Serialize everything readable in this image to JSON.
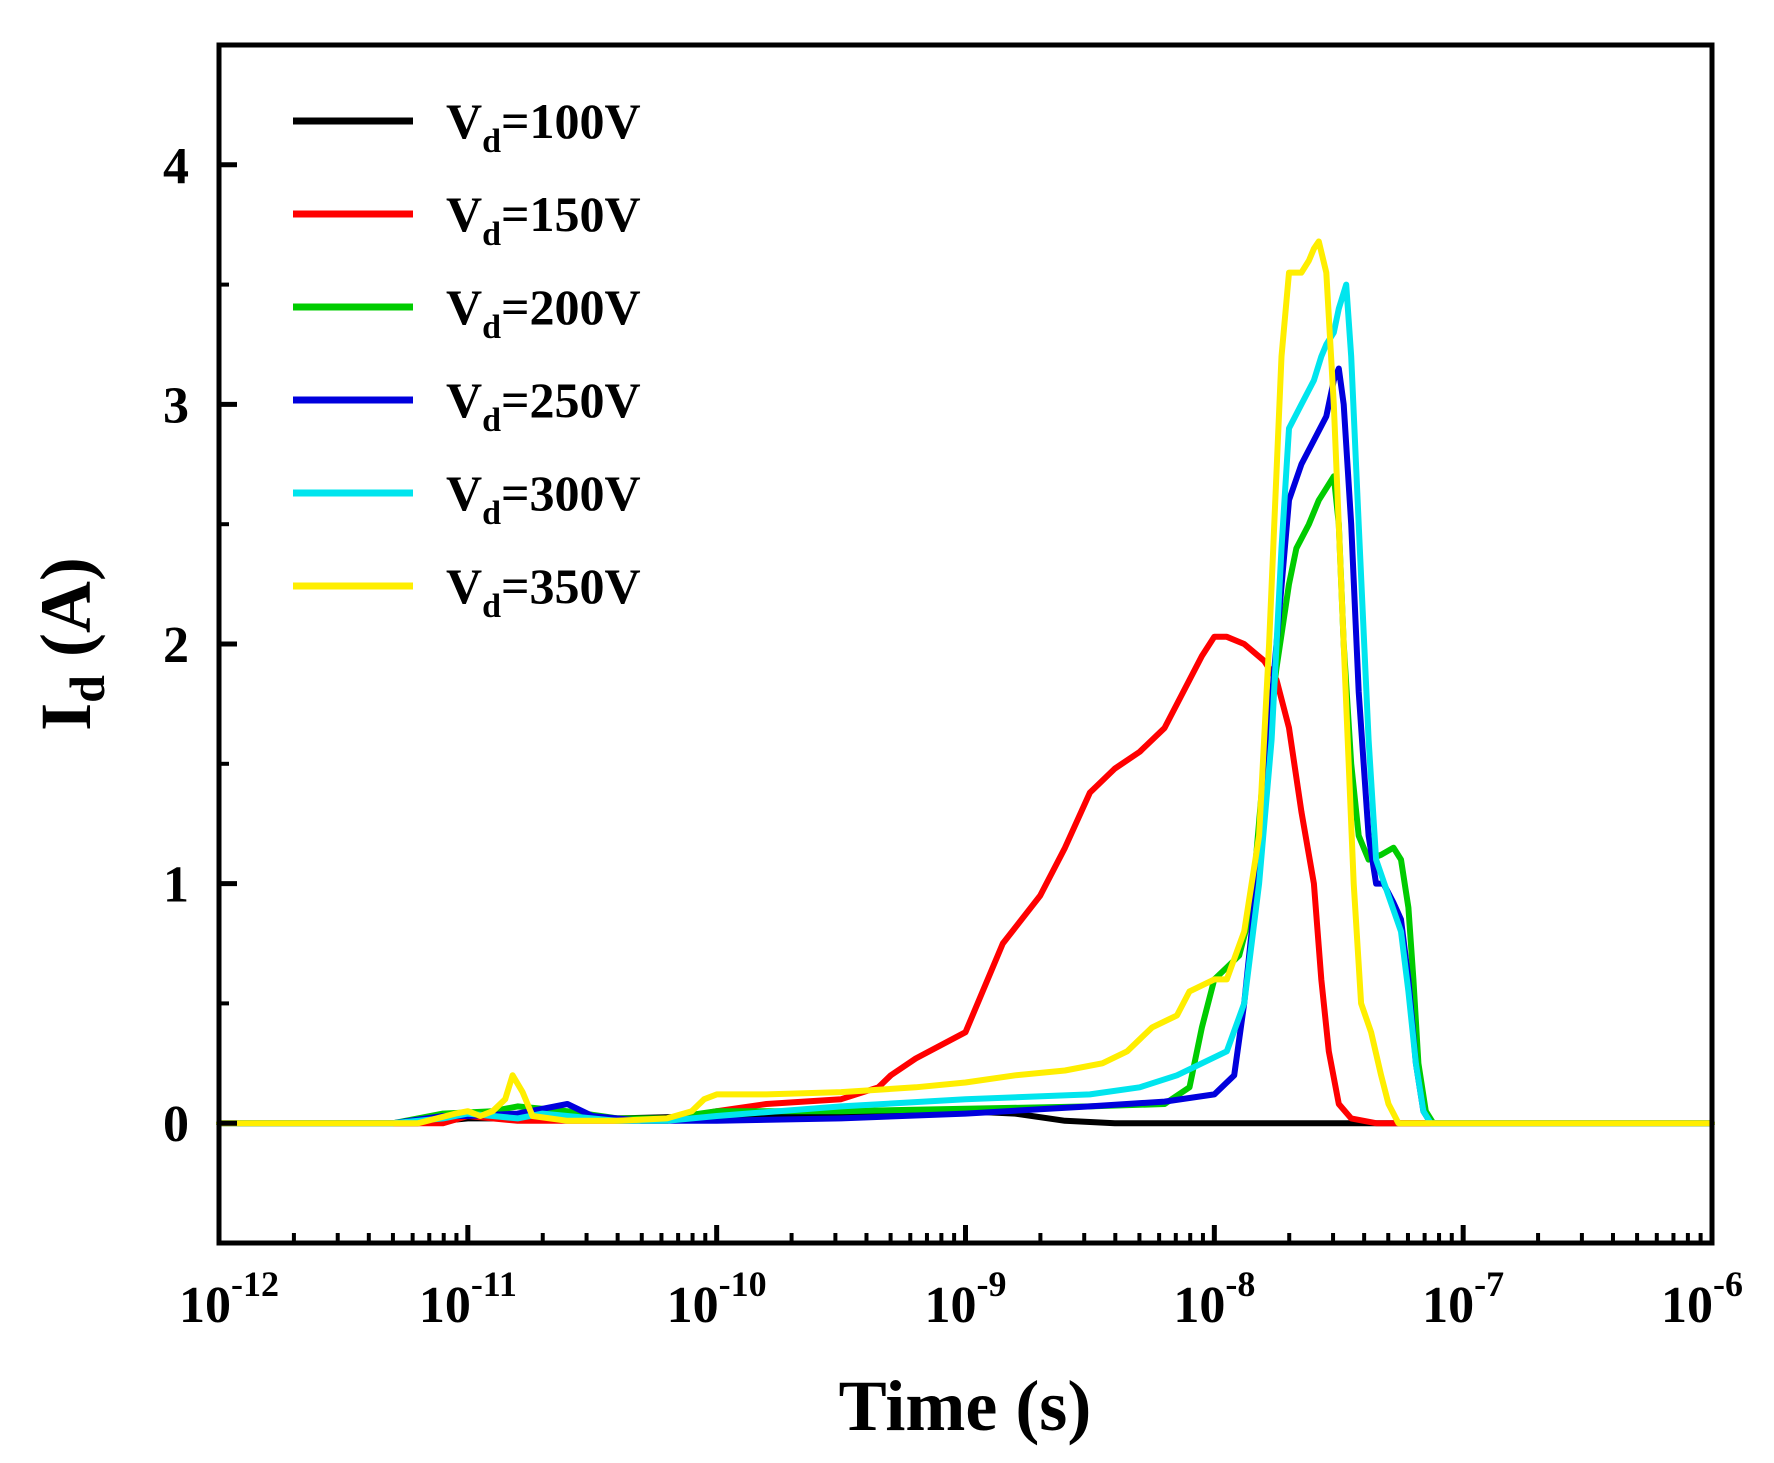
{
  "chart_data": {
    "type": "line",
    "title": "",
    "xlabel": "Time (s)",
    "ylabel": {
      "main": "I",
      "sub": "d",
      "unit": " (A)"
    },
    "xscale": "log",
    "xlim_exp": [
      -12,
      -6
    ],
    "ylim": [
      -0.5,
      4.5
    ],
    "yticks": [
      0,
      1,
      2,
      3,
      4
    ],
    "xticks": [
      {
        "exp": -12,
        "base": "10",
        "sup": "-12"
      },
      {
        "exp": -11,
        "base": "10",
        "sup": "-11"
      },
      {
        "exp": -10,
        "base": "10",
        "sup": "-10"
      },
      {
        "exp": -9,
        "base": "10",
        "sup": "-9"
      },
      {
        "exp": -8,
        "base": "10",
        "sup": "-8"
      },
      {
        "exp": -7,
        "base": "10",
        "sup": "-7"
      },
      {
        "exp": -6,
        "base": "10",
        "sup": "-6"
      }
    ],
    "grid": false,
    "legend_position": "top-left",
    "series": [
      {
        "name": "Vd=100V",
        "label_main": "V",
        "label_sub": "d",
        "label_rest": "=100V",
        "color": "#000000",
        "points": [
          [
            -12,
            0
          ],
          [
            -11.2,
            0
          ],
          [
            -11.0,
            0.02
          ],
          [
            -10.7,
            0.02
          ],
          [
            -10.4,
            0.02
          ],
          [
            -10.0,
            0.03
          ],
          [
            -9.5,
            0.04
          ],
          [
            -9.0,
            0.05
          ],
          [
            -8.8,
            0.04
          ],
          [
            -8.6,
            0.01
          ],
          [
            -8.4,
            0
          ],
          [
            -8.0,
            0
          ],
          [
            -7.5,
            0
          ],
          [
            -6,
            0
          ]
        ]
      },
      {
        "name": "Vd=150V",
        "label_main": "V",
        "label_sub": "d",
        "label_rest": "=150V",
        "color": "#ff0000",
        "points": [
          [
            -12,
            0
          ],
          [
            -11.1,
            0
          ],
          [
            -11.0,
            0.03
          ],
          [
            -10.8,
            0.01
          ],
          [
            -10.6,
            0.01
          ],
          [
            -10.4,
            0.01
          ],
          [
            -10.2,
            0.01
          ],
          [
            -10.1,
            0.03
          ],
          [
            -10.0,
            0.05
          ],
          [
            -9.8,
            0.08
          ],
          [
            -9.5,
            0.1
          ],
          [
            -9.35,
            0.15
          ],
          [
            -9.3,
            0.2
          ],
          [
            -9.2,
            0.27
          ],
          [
            -9.0,
            0.38
          ],
          [
            -8.85,
            0.75
          ],
          [
            -8.7,
            0.95
          ],
          [
            -8.6,
            1.15
          ],
          [
            -8.5,
            1.38
          ],
          [
            -8.4,
            1.48
          ],
          [
            -8.3,
            1.55
          ],
          [
            -8.2,
            1.65
          ],
          [
            -8.1,
            1.85
          ],
          [
            -8.05,
            1.95
          ],
          [
            -8.0,
            2.03
          ],
          [
            -7.95,
            2.03
          ],
          [
            -7.88,
            2.0
          ],
          [
            -7.8,
            1.93
          ],
          [
            -7.75,
            1.85
          ],
          [
            -7.7,
            1.65
          ],
          [
            -7.65,
            1.3
          ],
          [
            -7.6,
            1.0
          ],
          [
            -7.57,
            0.6
          ],
          [
            -7.54,
            0.3
          ],
          [
            -7.5,
            0.08
          ],
          [
            -7.45,
            0.02
          ],
          [
            -7.35,
            0
          ],
          [
            -7.2,
            0
          ],
          [
            -6,
            0
          ]
        ]
      },
      {
        "name": "Vd=200V",
        "label_main": "V",
        "label_sub": "d",
        "label_rest": "=200V",
        "color": "#00cc00",
        "points": [
          [
            -12,
            0
          ],
          [
            -11.3,
            0
          ],
          [
            -11.1,
            0.04
          ],
          [
            -10.9,
            0.05
          ],
          [
            -10.8,
            0.07
          ],
          [
            -10.6,
            0.05
          ],
          [
            -10.4,
            0.02
          ],
          [
            -10.2,
            0.02
          ],
          [
            -10.0,
            0.05
          ],
          [
            -9.5,
            0.05
          ],
          [
            -9.0,
            0.06
          ],
          [
            -8.5,
            0.07
          ],
          [
            -8.2,
            0.08
          ],
          [
            -8.1,
            0.15
          ],
          [
            -8.05,
            0.4
          ],
          [
            -8.0,
            0.6
          ],
          [
            -7.95,
            0.65
          ],
          [
            -7.9,
            0.7
          ],
          [
            -7.85,
            0.9
          ],
          [
            -7.8,
            1.5
          ],
          [
            -7.75,
            1.9
          ],
          [
            -7.7,
            2.25
          ],
          [
            -7.67,
            2.4
          ],
          [
            -7.62,
            2.5
          ],
          [
            -7.58,
            2.6
          ],
          [
            -7.55,
            2.65
          ],
          [
            -7.52,
            2.7
          ],
          [
            -7.5,
            2.5
          ],
          [
            -7.48,
            2.0
          ],
          [
            -7.45,
            1.5
          ],
          [
            -7.42,
            1.2
          ],
          [
            -7.38,
            1.1
          ],
          [
            -7.33,
            1.12
          ],
          [
            -7.28,
            1.15
          ],
          [
            -7.25,
            1.1
          ],
          [
            -7.22,
            0.9
          ],
          [
            -7.2,
            0.6
          ],
          [
            -7.18,
            0.25
          ],
          [
            -7.15,
            0.05
          ],
          [
            -7.12,
            0
          ],
          [
            -6,
            0
          ]
        ]
      },
      {
        "name": "Vd=250V",
        "label_main": "V",
        "label_sub": "d",
        "label_rest": "=250V",
        "color": "#0000dd",
        "points": [
          [
            -12,
            0
          ],
          [
            -11.3,
            0
          ],
          [
            -11.1,
            0.03
          ],
          [
            -11.0,
            0.03
          ],
          [
            -10.8,
            0.04
          ],
          [
            -10.7,
            0.06
          ],
          [
            -10.6,
            0.08
          ],
          [
            -10.5,
            0.03
          ],
          [
            -10.3,
            0.01
          ],
          [
            -10.0,
            0.01
          ],
          [
            -9.5,
            0.02
          ],
          [
            -9.0,
            0.04
          ],
          [
            -8.5,
            0.07
          ],
          [
            -8.2,
            0.09
          ],
          [
            -8.0,
            0.12
          ],
          [
            -7.92,
            0.2
          ],
          [
            -7.88,
            0.5
          ],
          [
            -7.84,
            0.9
          ],
          [
            -7.8,
            1.4
          ],
          [
            -7.75,
            2.0
          ],
          [
            -7.7,
            2.6
          ],
          [
            -7.65,
            2.75
          ],
          [
            -7.6,
            2.85
          ],
          [
            -7.55,
            2.95
          ],
          [
            -7.52,
            3.1
          ],
          [
            -7.5,
            3.15
          ],
          [
            -7.48,
            3.0
          ],
          [
            -7.45,
            2.5
          ],
          [
            -7.42,
            1.8
          ],
          [
            -7.38,
            1.2
          ],
          [
            -7.35,
            1.0
          ],
          [
            -7.32,
            1.0
          ],
          [
            -7.28,
            0.92
          ],
          [
            -7.25,
            0.85
          ],
          [
            -7.22,
            0.6
          ],
          [
            -7.19,
            0.25
          ],
          [
            -7.16,
            0.05
          ],
          [
            -7.13,
            0
          ],
          [
            -6,
            0
          ]
        ]
      },
      {
        "name": "Vd=300V",
        "label_main": "V",
        "label_sub": "d",
        "label_rest": "=300V",
        "color": "#00e5ee",
        "points": [
          [
            -12,
            0
          ],
          [
            -11.3,
            0
          ],
          [
            -11.1,
            0.02
          ],
          [
            -11.0,
            0.04
          ],
          [
            -10.9,
            0.03
          ],
          [
            -10.8,
            0.02
          ],
          [
            -10.7,
            0.04
          ],
          [
            -10.6,
            0.03
          ],
          [
            -10.4,
            0.01
          ],
          [
            -10.2,
            0.01
          ],
          [
            -10.0,
            0.03
          ],
          [
            -9.5,
            0.07
          ],
          [
            -9.0,
            0.1
          ],
          [
            -8.5,
            0.12
          ],
          [
            -8.3,
            0.15
          ],
          [
            -8.15,
            0.2
          ],
          [
            -8.05,
            0.25
          ],
          [
            -7.95,
            0.3
          ],
          [
            -7.88,
            0.5
          ],
          [
            -7.82,
            1.0
          ],
          [
            -7.77,
            1.6
          ],
          [
            -7.73,
            2.4
          ],
          [
            -7.7,
            2.9
          ],
          [
            -7.65,
            3.0
          ],
          [
            -7.6,
            3.1
          ],
          [
            -7.57,
            3.2
          ],
          [
            -7.55,
            3.25
          ],
          [
            -7.52,
            3.3
          ],
          [
            -7.5,
            3.4
          ],
          [
            -7.47,
            3.5
          ],
          [
            -7.45,
            3.2
          ],
          [
            -7.42,
            2.5
          ],
          [
            -7.38,
            1.6
          ],
          [
            -7.35,
            1.1
          ],
          [
            -7.3,
            0.95
          ],
          [
            -7.25,
            0.8
          ],
          [
            -7.22,
            0.55
          ],
          [
            -7.19,
            0.25
          ],
          [
            -7.16,
            0.05
          ],
          [
            -7.13,
            0
          ],
          [
            -6,
            0
          ]
        ]
      },
      {
        "name": "Vd=350V",
        "label_main": "V",
        "label_sub": "d",
        "label_rest": "=350V",
        "color": "#ffee00",
        "points": [
          [
            -12,
            0
          ],
          [
            -11.2,
            0
          ],
          [
            -11.05,
            0.04
          ],
          [
            -11.0,
            0.05
          ],
          [
            -10.95,
            0.03
          ],
          [
            -10.9,
            0.05
          ],
          [
            -10.85,
            0.1
          ],
          [
            -10.82,
            0.2
          ],
          [
            -10.78,
            0.13
          ],
          [
            -10.74,
            0.03
          ],
          [
            -10.6,
            0.01
          ],
          [
            -10.4,
            0.01
          ],
          [
            -10.2,
            0.02
          ],
          [
            -10.1,
            0.05
          ],
          [
            -10.05,
            0.1
          ],
          [
            -10.0,
            0.12
          ],
          [
            -9.8,
            0.12
          ],
          [
            -9.5,
            0.13
          ],
          [
            -9.2,
            0.15
          ],
          [
            -9.0,
            0.17
          ],
          [
            -8.8,
            0.2
          ],
          [
            -8.6,
            0.22
          ],
          [
            -8.45,
            0.25
          ],
          [
            -8.35,
            0.3
          ],
          [
            -8.25,
            0.4
          ],
          [
            -8.15,
            0.45
          ],
          [
            -8.1,
            0.55
          ],
          [
            -8.0,
            0.6
          ],
          [
            -7.95,
            0.6
          ],
          [
            -7.88,
            0.8
          ],
          [
            -7.82,
            1.2
          ],
          [
            -7.78,
            2.0
          ],
          [
            -7.73,
            3.2
          ],
          [
            -7.7,
            3.55
          ],
          [
            -7.65,
            3.55
          ],
          [
            -7.62,
            3.6
          ],
          [
            -7.6,
            3.65
          ],
          [
            -7.58,
            3.68
          ],
          [
            -7.55,
            3.55
          ],
          [
            -7.52,
            3.0
          ],
          [
            -7.48,
            2.0
          ],
          [
            -7.44,
            1.0
          ],
          [
            -7.41,
            0.5
          ],
          [
            -7.37,
            0.38
          ],
          [
            -7.33,
            0.2
          ],
          [
            -7.3,
            0.08
          ],
          [
            -7.26,
            0
          ],
          [
            -6,
            0
          ]
        ]
      }
    ]
  }
}
